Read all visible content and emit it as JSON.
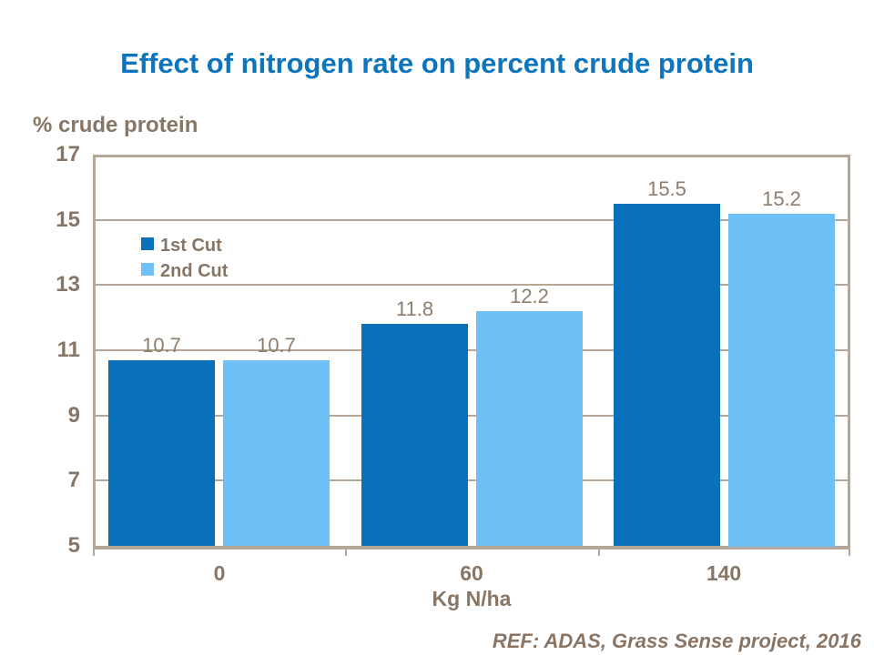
{
  "slide": {
    "footer": "REF: ADAS, Grass Sense project, 2016"
  },
  "colors": {
    "title": "#0e75bd",
    "series1": "#0a70ba",
    "series2": "#6fc0f7",
    "axis_text": "#877665",
    "data_label": "#8e7d6d",
    "line": "#b4a797",
    "footer": "#8a7565",
    "background": "#ffffff"
  },
  "chart_data": {
    "type": "bar",
    "title": "Effect of nitrogen rate on percent crude protein",
    "categories": [
      "0",
      "60",
      "140"
    ],
    "series": [
      {
        "name": "1st Cut",
        "color": "#0a70ba",
        "values": [
          10.7,
          11.8,
          15.5
        ],
        "labels": [
          "10.7",
          "11.8",
          "15.5"
        ]
      },
      {
        "name": "2nd Cut",
        "color": "#6fc0f7",
        "values": [
          10.7,
          12.2,
          15.2
        ],
        "labels": [
          "10.7",
          "12.2",
          "15.2"
        ]
      }
    ],
    "xlabel": "Kg N/ha",
    "ylabel": "% crude protein",
    "ylim": [
      5,
      17
    ],
    "yticks": [
      5,
      7,
      9,
      11,
      13,
      15,
      17
    ],
    "grid": true,
    "legend_position": "inside-top-left"
  }
}
